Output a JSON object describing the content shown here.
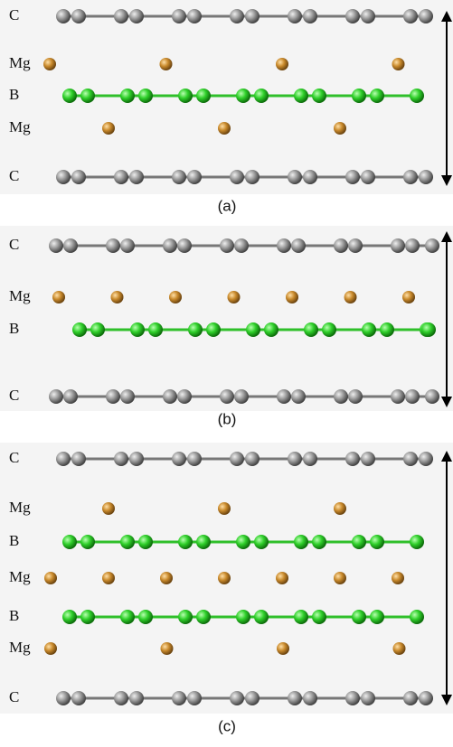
{
  "panels": [
    {
      "caption": "(a)",
      "layers": [
        "C",
        "Mg",
        "B",
        "Mg",
        "C"
      ]
    },
    {
      "caption": "(b)",
      "layers": [
        "C",
        "Mg",
        "B",
        "C"
      ]
    },
    {
      "caption": "(c)",
      "layers": [
        "C",
        "Mg",
        "B",
        "Mg",
        "B",
        "Mg",
        "C"
      ]
    }
  ]
}
